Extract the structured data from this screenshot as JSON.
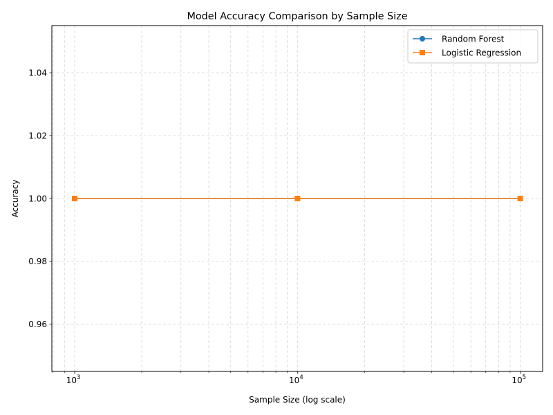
{
  "chart_data": {
    "type": "line",
    "title": "Model Accuracy Comparison by Sample Size",
    "xlabel": "Sample Size (log scale)",
    "ylabel": "Accuracy",
    "xscale": "log",
    "xlim": [
      790,
      126000
    ],
    "ylim": [
      0.945,
      1.055
    ],
    "x": [
      1000,
      10000,
      100000
    ],
    "xticks": [
      {
        "value": 1000,
        "base": "10",
        "exp": "3"
      },
      {
        "value": 10000,
        "base": "10",
        "exp": "4"
      },
      {
        "value": 100000,
        "base": "10",
        "exp": "5"
      }
    ],
    "yticks": [
      {
        "value": 0.96,
        "label": "0.96"
      },
      {
        "value": 0.98,
        "label": "0.98"
      },
      {
        "value": 1.0,
        "label": "1.00"
      },
      {
        "value": 1.02,
        "label": "1.02"
      },
      {
        "value": 1.04,
        "label": "1.04"
      }
    ],
    "grid": true,
    "grid_style": "dashed",
    "legend_position": "top-right",
    "series": [
      {
        "name": "Random Forest",
        "values": [
          1.0,
          1.0,
          1.0
        ],
        "color": "#1f77b4",
        "marker": "circle"
      },
      {
        "name": "Logistic Regression",
        "values": [
          1.0,
          1.0,
          1.0
        ],
        "color": "#ff7f0e",
        "marker": "square"
      }
    ]
  }
}
